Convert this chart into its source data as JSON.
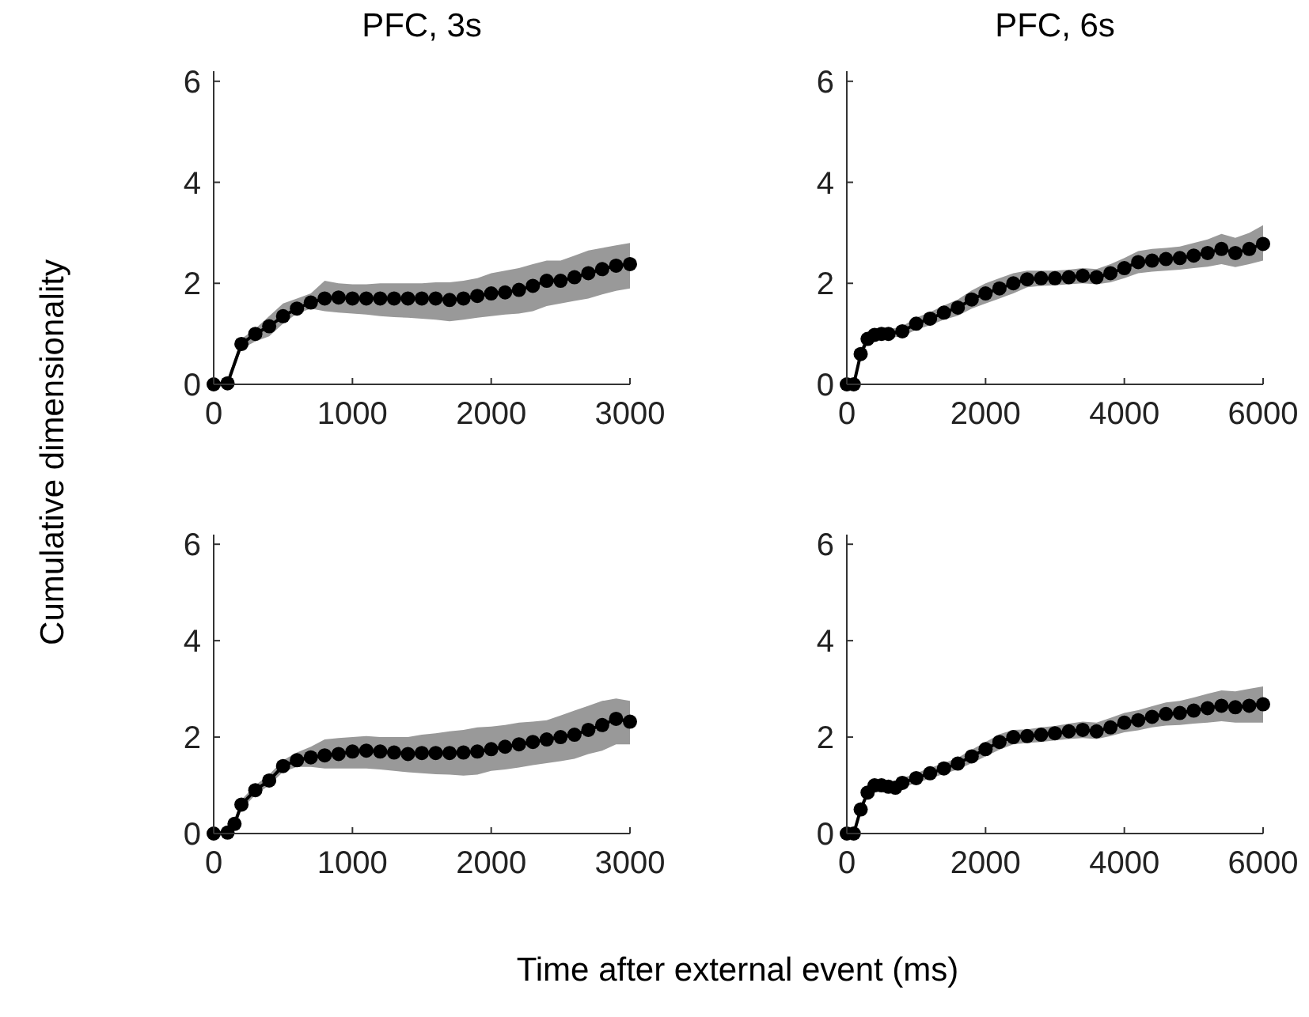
{
  "chart_data": [
    {
      "type": "line",
      "title": "PFC, 3s",
      "ylabel": "Cumulative dimensionality",
      "marker": "circle",
      "xlim": [
        0,
        3000
      ],
      "xticks": [
        0,
        1000,
        2000,
        3000
      ],
      "ylim": [
        0,
        6.2
      ],
      "yticks": [
        0,
        2,
        4,
        6
      ],
      "grid": false,
      "x": [
        0,
        100,
        200,
        300,
        400,
        500,
        600,
        700,
        800,
        900,
        1000,
        1100,
        1200,
        1300,
        1400,
        1500,
        1600,
        1700,
        1800,
        1900,
        2000,
        2100,
        2200,
        2300,
        2400,
        2500,
        2600,
        2700,
        2800,
        2900,
        3000
      ],
      "series": [
        {
          "color": "#000000",
          "values": [
            0,
            0.02,
            0.8,
            1.0,
            1.15,
            1.35,
            1.5,
            1.62,
            1.7,
            1.72,
            1.7,
            1.7,
            1.7,
            1.7,
            1.7,
            1.7,
            1.7,
            1.67,
            1.7,
            1.75,
            1.8,
            1.82,
            1.87,
            1.95,
            2.05,
            2.05,
            2.12,
            2.2,
            2.28,
            2.35,
            2.38
          ],
          "lower": [
            0,
            0,
            0.7,
            0.85,
            0.95,
            1.2,
            1.4,
            1.5,
            1.45,
            1.42,
            1.4,
            1.38,
            1.35,
            1.33,
            1.32,
            1.3,
            1.28,
            1.25,
            1.28,
            1.32,
            1.35,
            1.38,
            1.4,
            1.45,
            1.55,
            1.6,
            1.65,
            1.7,
            1.78,
            1.85,
            1.9
          ],
          "upper": [
            0,
            0.1,
            0.9,
            1.1,
            1.35,
            1.6,
            1.7,
            1.8,
            2.05,
            2.0,
            1.98,
            1.98,
            2.0,
            2.0,
            2.0,
            2.0,
            2.02,
            2.02,
            2.05,
            2.1,
            2.2,
            2.25,
            2.3,
            2.38,
            2.45,
            2.45,
            2.55,
            2.65,
            2.7,
            2.75,
            2.8
          ]
        }
      ]
    },
    {
      "type": "line",
      "title": "PFC, 6s",
      "marker": "circle",
      "xlim": [
        0,
        6000
      ],
      "xticks": [
        0,
        2000,
        4000,
        6000
      ],
      "ylim": [
        0,
        6.2
      ],
      "yticks": [
        0,
        2,
        4,
        6
      ],
      "grid": false,
      "x": [
        0,
        100,
        200,
        300,
        400,
        500,
        600,
        800,
        1000,
        1200,
        1400,
        1600,
        1800,
        2000,
        2200,
        2400,
        2600,
        2800,
        3000,
        3200,
        3400,
        3600,
        3800,
        4000,
        4200,
        4400,
        4600,
        4800,
        5000,
        5200,
        5400,
        5600,
        5800,
        6000
      ],
      "series": [
        {
          "color": "#000000",
          "values": [
            0,
            0,
            0.6,
            0.9,
            0.98,
            1.0,
            1.0,
            1.05,
            1.2,
            1.3,
            1.42,
            1.52,
            1.68,
            1.8,
            1.9,
            2.0,
            2.08,
            2.1,
            2.1,
            2.12,
            2.15,
            2.12,
            2.2,
            2.3,
            2.42,
            2.45,
            2.48,
            2.5,
            2.55,
            2.6,
            2.68,
            2.6,
            2.68,
            2.78
          ],
          "lower": [
            0,
            0,
            0.5,
            0.82,
            0.9,
            0.92,
            0.92,
            0.95,
            1.08,
            1.17,
            1.28,
            1.36,
            1.5,
            1.6,
            1.7,
            1.8,
            1.92,
            1.95,
            1.96,
            1.98,
            2.0,
            1.98,
            2.02,
            2.1,
            2.2,
            2.23,
            2.25,
            2.27,
            2.3,
            2.33,
            2.38,
            2.32,
            2.38,
            2.45
          ],
          "upper": [
            0,
            0.1,
            0.7,
            0.98,
            1.06,
            1.08,
            1.08,
            1.15,
            1.32,
            1.43,
            1.56,
            1.68,
            1.86,
            2.0,
            2.1,
            2.2,
            2.25,
            2.25,
            2.25,
            2.27,
            2.3,
            2.28,
            2.38,
            2.5,
            2.64,
            2.68,
            2.7,
            2.73,
            2.8,
            2.87,
            2.98,
            2.9,
            3.0,
            3.15
          ]
        }
      ]
    },
    {
      "type": "line",
      "xlabel": "Time after external event (ms)",
      "marker": "circle",
      "xlim": [
        0,
        3000
      ],
      "xticks": [
        0,
        1000,
        2000,
        3000
      ],
      "ylim": [
        0,
        6.2
      ],
      "yticks": [
        0,
        2,
        4,
        6
      ],
      "grid": false,
      "x": [
        0,
        100,
        150,
        200,
        300,
        400,
        500,
        600,
        700,
        800,
        900,
        1000,
        1100,
        1200,
        1300,
        1400,
        1500,
        1600,
        1700,
        1800,
        1900,
        2000,
        2100,
        2200,
        2300,
        2400,
        2500,
        2600,
        2700,
        2800,
        2900,
        3000
      ],
      "series": [
        {
          "color": "#000000",
          "values": [
            0,
            0.02,
            0.2,
            0.6,
            0.9,
            1.1,
            1.4,
            1.52,
            1.58,
            1.62,
            1.65,
            1.7,
            1.72,
            1.7,
            1.68,
            1.65,
            1.67,
            1.67,
            1.67,
            1.68,
            1.7,
            1.75,
            1.8,
            1.85,
            1.9,
            1.95,
            2.0,
            2.05,
            2.15,
            2.25,
            2.38,
            2.32
          ],
          "lower": [
            0,
            0,
            0.1,
            0.5,
            0.8,
            1.0,
            1.28,
            1.38,
            1.38,
            1.35,
            1.35,
            1.35,
            1.35,
            1.33,
            1.3,
            1.27,
            1.25,
            1.23,
            1.22,
            1.2,
            1.22,
            1.3,
            1.33,
            1.37,
            1.42,
            1.46,
            1.5,
            1.55,
            1.65,
            1.72,
            1.85,
            1.85
          ],
          "upper": [
            0,
            0.08,
            0.3,
            0.7,
            1.0,
            1.22,
            1.52,
            1.68,
            1.8,
            1.95,
            1.98,
            2.0,
            2.02,
            2.0,
            2.0,
            2.0,
            2.05,
            2.08,
            2.12,
            2.15,
            2.2,
            2.22,
            2.25,
            2.3,
            2.32,
            2.35,
            2.45,
            2.55,
            2.65,
            2.75,
            2.8,
            2.75
          ]
        }
      ]
    },
    {
      "type": "line",
      "marker": "circle",
      "xlim": [
        0,
        6000
      ],
      "xticks": [
        0,
        2000,
        4000,
        6000
      ],
      "ylim": [
        0,
        6.2
      ],
      "yticks": [
        0,
        2,
        4,
        6
      ],
      "grid": false,
      "x": [
        0,
        100,
        200,
        300,
        400,
        500,
        600,
        700,
        800,
        1000,
        1200,
        1400,
        1600,
        1800,
        2000,
        2200,
        2400,
        2600,
        2800,
        3000,
        3200,
        3400,
        3600,
        3800,
        4000,
        4200,
        4400,
        4600,
        4800,
        5000,
        5200,
        5400,
        5600,
        5800,
        6000
      ],
      "series": [
        {
          "color": "#000000",
          "values": [
            0,
            0,
            0.5,
            0.85,
            1.0,
            1.0,
            0.97,
            0.95,
            1.05,
            1.15,
            1.25,
            1.35,
            1.45,
            1.6,
            1.75,
            1.9,
            2.0,
            2.02,
            2.05,
            2.08,
            2.12,
            2.15,
            2.12,
            2.2,
            2.3,
            2.35,
            2.42,
            2.48,
            2.5,
            2.55,
            2.6,
            2.65,
            2.62,
            2.65,
            2.68
          ],
          "lower": [
            0,
            0,
            0.42,
            0.78,
            0.92,
            0.92,
            0.88,
            0.86,
            0.95,
            1.05,
            1.14,
            1.24,
            1.33,
            1.46,
            1.6,
            1.74,
            1.85,
            1.88,
            1.9,
            1.93,
            1.96,
            1.98,
            1.96,
            2.02,
            2.1,
            2.14,
            2.2,
            2.24,
            2.25,
            2.28,
            2.3,
            2.33,
            2.3,
            2.3,
            2.3
          ],
          "upper": [
            0,
            0.08,
            0.58,
            0.92,
            1.08,
            1.08,
            1.06,
            1.05,
            1.15,
            1.25,
            1.36,
            1.46,
            1.57,
            1.74,
            1.9,
            2.06,
            2.15,
            2.16,
            2.2,
            2.23,
            2.28,
            2.32,
            2.3,
            2.4,
            2.5,
            2.56,
            2.64,
            2.72,
            2.75,
            2.82,
            2.9,
            2.97,
            2.95,
            3.0,
            3.05
          ]
        }
      ]
    }
  ]
}
